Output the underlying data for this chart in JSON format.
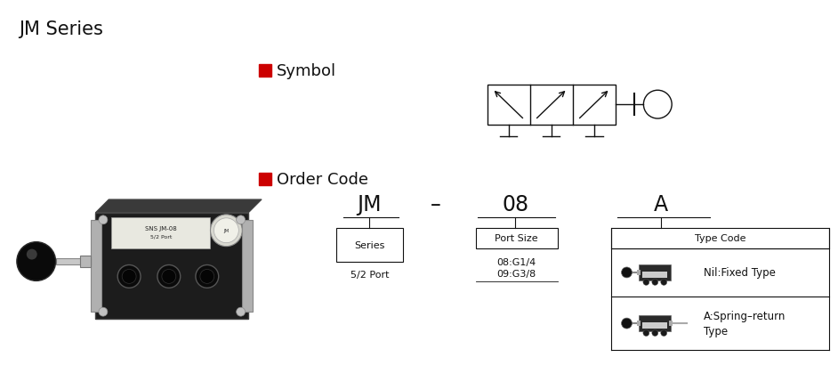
{
  "title": "JM Series",
  "symbol_label": "Symbol",
  "order_code_label": "Order Code",
  "red_color": "#CC0000",
  "black": "#111111",
  "dark": "#333333",
  "bg_color": "#ffffff",
  "code_parts": [
    "JM",
    "-",
    "08",
    "A"
  ],
  "series_label": "Series",
  "series_sub": "5/2 Port",
  "port_label": "Port Size",
  "port_sub1": "08:G1/4",
  "port_sub2": "09:G3/8",
  "type_label": "Type Code",
  "nil_type": "Nil:Fixed Type",
  "a_type": "A:Spring–return\nType",
  "font_size_title": 15,
  "font_size_section": 13,
  "font_size_code": 17,
  "font_size_sub": 8.5,
  "font_size_label_box": 8
}
